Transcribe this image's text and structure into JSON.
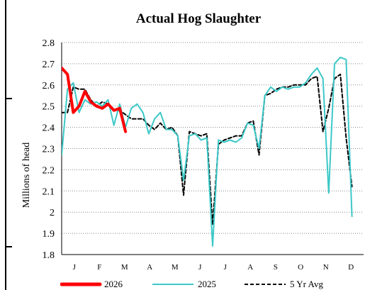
{
  "chart_data": {
    "type": "line",
    "title": "Actual Hog Slaughter",
    "ylabel": "Millions of head",
    "xlabel": "",
    "ylim": [
      1.8,
      2.8
    ],
    "yticks": [
      1.8,
      1.9,
      2.0,
      2.1,
      2.2,
      2.3,
      2.4,
      2.5,
      2.6,
      2.7,
      2.8
    ],
    "ytick_labels": [
      "1.8",
      "1.9",
      "2",
      "2.1",
      "2.2",
      "2.3",
      "2.4",
      "2.5",
      "2.6",
      "2.7",
      "2.8"
    ],
    "x_unit": "week of year",
    "xlim": [
      1,
      53
    ],
    "month_labels": [
      "J",
      "F",
      "M",
      "A",
      "M",
      "J",
      "J",
      "A",
      "S",
      "O",
      "N",
      "D"
    ],
    "grid": true,
    "legend_position": "bottom",
    "series": [
      {
        "name": "2026",
        "color": "#ff0000",
        "style": "solid",
        "width": 4,
        "points": [
          [
            1,
            2.68
          ],
          [
            2,
            2.65
          ],
          [
            3,
            2.47
          ],
          [
            4,
            2.5
          ],
          [
            5,
            2.57
          ],
          [
            6,
            2.52
          ],
          [
            7,
            2.5
          ],
          [
            8,
            2.49
          ],
          [
            9,
            2.51
          ],
          [
            10,
            2.48
          ],
          [
            11,
            2.49
          ],
          [
            12,
            2.38
          ]
        ]
      },
      {
        "name": "2025",
        "color": "#3cc8c8",
        "style": "solid",
        "width": 2,
        "points": [
          [
            1,
            2.27
          ],
          [
            2,
            2.58
          ],
          [
            3,
            2.61
          ],
          [
            4,
            2.47
          ],
          [
            5,
            2.53
          ],
          [
            6,
            2.51
          ],
          [
            7,
            2.52
          ],
          [
            8,
            2.5
          ],
          [
            9,
            2.53
          ],
          [
            10,
            2.41
          ],
          [
            11,
            2.51
          ],
          [
            12,
            2.4
          ],
          [
            13,
            2.49
          ],
          [
            14,
            2.51
          ],
          [
            15,
            2.47
          ],
          [
            16,
            2.37
          ],
          [
            17,
            2.44
          ],
          [
            18,
            2.47
          ],
          [
            19,
            2.39
          ],
          [
            20,
            2.39
          ],
          [
            21,
            2.36
          ],
          [
            22,
            2.15
          ],
          [
            23,
            2.36
          ],
          [
            24,
            2.37
          ],
          [
            25,
            2.34
          ],
          [
            26,
            2.35
          ],
          [
            27,
            1.84
          ],
          [
            28,
            2.34
          ],
          [
            29,
            2.33
          ],
          [
            30,
            2.34
          ],
          [
            31,
            2.33
          ],
          [
            32,
            2.35
          ],
          [
            33,
            2.42
          ],
          [
            34,
            2.41
          ],
          [
            35,
            2.3
          ],
          [
            36,
            2.55
          ],
          [
            37,
            2.59
          ],
          [
            38,
            2.57
          ],
          [
            39,
            2.59
          ],
          [
            40,
            2.58
          ],
          [
            41,
            2.59
          ],
          [
            42,
            2.59
          ],
          [
            43,
            2.61
          ],
          [
            44,
            2.65
          ],
          [
            45,
            2.68
          ],
          [
            46,
            2.63
          ],
          [
            47,
            2.09
          ],
          [
            48,
            2.7
          ],
          [
            49,
            2.73
          ],
          [
            50,
            2.72
          ],
          [
            51,
            1.98
          ]
        ]
      },
      {
        "name": "5 Yr Avg",
        "color": "#000000",
        "style": "dashed",
        "width": 2,
        "points": [
          [
            1,
            2.47
          ],
          [
            2,
            2.47
          ],
          [
            3,
            2.59
          ],
          [
            4,
            2.58
          ],
          [
            5,
            2.58
          ],
          [
            6,
            2.53
          ],
          [
            7,
            2.5
          ],
          [
            8,
            2.52
          ],
          [
            9,
            2.51
          ],
          [
            10,
            2.48
          ],
          [
            11,
            2.48
          ],
          [
            12,
            2.46
          ],
          [
            13,
            2.44
          ],
          [
            14,
            2.44
          ],
          [
            15,
            2.44
          ],
          [
            16,
            2.41
          ],
          [
            17,
            2.39
          ],
          [
            18,
            2.42
          ],
          [
            19,
            2.39
          ],
          [
            20,
            2.4
          ],
          [
            21,
            2.36
          ],
          [
            22,
            2.08
          ],
          [
            23,
            2.38
          ],
          [
            24,
            2.37
          ],
          [
            25,
            2.36
          ],
          [
            26,
            2.37
          ],
          [
            27,
            1.94
          ],
          [
            28,
            2.32
          ],
          [
            29,
            2.34
          ],
          [
            30,
            2.35
          ],
          [
            31,
            2.36
          ],
          [
            32,
            2.36
          ],
          [
            33,
            2.42
          ],
          [
            34,
            2.43
          ],
          [
            35,
            2.27
          ],
          [
            36,
            2.55
          ],
          [
            37,
            2.56
          ],
          [
            38,
            2.58
          ],
          [
            39,
            2.59
          ],
          [
            40,
            2.59
          ],
          [
            41,
            2.6
          ],
          [
            42,
            2.6
          ],
          [
            43,
            2.6
          ],
          [
            44,
            2.63
          ],
          [
            45,
            2.64
          ],
          [
            46,
            2.38
          ],
          [
            47,
            2.49
          ],
          [
            48,
            2.63
          ],
          [
            49,
            2.65
          ],
          [
            50,
            2.35
          ],
          [
            51,
            2.12
          ]
        ]
      }
    ]
  }
}
